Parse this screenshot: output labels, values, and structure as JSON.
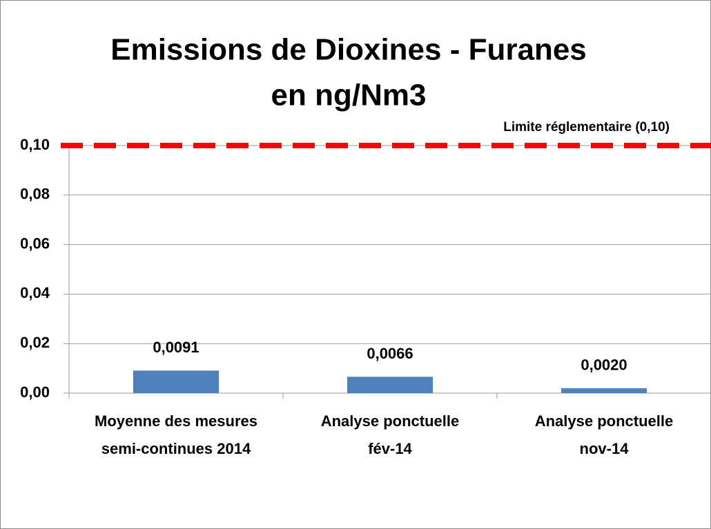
{
  "chart_data": {
    "type": "bar",
    "title": [
      "Emissions de Dioxines - Furanes",
      "en ng/Nm3"
    ],
    "categories": [
      [
        "Moyenne des mesures",
        "semi-continues 2014"
      ],
      [
        "Analyse ponctuelle",
        "fév-14"
      ],
      [
        "Analyse ponctuelle",
        "nov-14"
      ]
    ],
    "values": [
      0.0091,
      0.0066,
      0.002
    ],
    "value_labels": [
      "0,0091",
      "0,0066",
      "0,0020"
    ],
    "color": "#4f81bd",
    "ylim": [
      0,
      0.1
    ],
    "yticks": [
      {
        "value": 0,
        "label": "0,00"
      },
      {
        "value": 0.02,
        "label": "0,02"
      },
      {
        "value": 0.04,
        "label": "0,04"
      },
      {
        "value": 0.06,
        "label": "0,06"
      },
      {
        "value": 0.08,
        "label": "0,08"
      },
      {
        "value": 0.1,
        "label": "0,10"
      }
    ],
    "grid": true,
    "reference_line": {
      "value": 0.1,
      "label": "Limite réglementaire (0,10)",
      "color": "#ff0000"
    }
  }
}
